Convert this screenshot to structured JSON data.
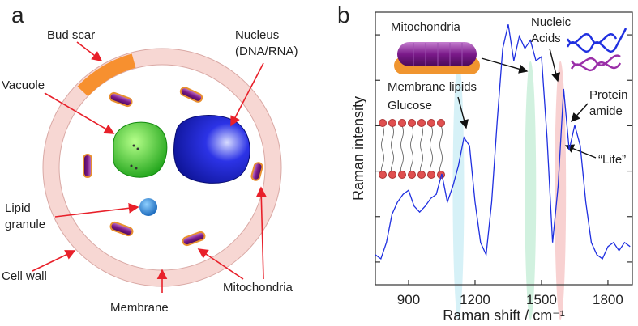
{
  "diagram": {
    "panel_label": "a",
    "labels": [
      {
        "lines": [
          "Bud scar"
        ]
      },
      {
        "lines": [
          "Nucleus",
          "(DNA/RNA)"
        ]
      },
      {
        "lines": [
          "Vacuole"
        ]
      },
      {
        "lines": [
          "Lipid",
          "granule"
        ]
      },
      {
        "lines": [
          "Cell wall"
        ]
      },
      {
        "lines": [
          "Membrane"
        ]
      },
      {
        "lines": [
          "Mitochondria"
        ]
      }
    ]
  },
  "chart_data": {
    "type": "line",
    "panel_label": "b",
    "x_label": "Raman shift / cm⁻¹",
    "y_label": "Raman intensity",
    "xlim": [
      750,
      1910
    ],
    "xticks": [
      900,
      1200,
      1500,
      1800
    ],
    "ylim": [
      0,
      6
    ],
    "yticks": [
      0.5,
      1.5,
      2.5,
      3.5,
      4.5,
      5.5
    ],
    "color": "#1f2fe0",
    "x": [
      750,
      775,
      800,
      825,
      850,
      875,
      900,
      925,
      950,
      975,
      1000,
      1025,
      1050,
      1075,
      1100,
      1125,
      1150,
      1175,
      1200,
      1225,
      1250,
      1275,
      1300,
      1325,
      1350,
      1375,
      1400,
      1425,
      1450,
      1475,
      1500,
      1525,
      1550,
      1575,
      1600,
      1625,
      1650,
      1675,
      1700,
      1725,
      1750,
      1775,
      1800,
      1825,
      1850,
      1875,
      1900
    ],
    "values": [
      0.66,
      0.57,
      0.93,
      1.55,
      1.82,
      1.99,
      2.08,
      1.73,
      1.6,
      1.73,
      1.9,
      1.99,
      2.44,
      1.82,
      2.17,
      2.62,
      3.24,
      3.06,
      1.82,
      0.93,
      0.66,
      1.82,
      3.6,
      5.2,
      5.73,
      4.93,
      5.47,
      5.2,
      5.38,
      4.93,
      5.02,
      3.24,
      0.93,
      2.17,
      4.31,
      2.97,
      3.51,
      3.06,
      1.82,
      0.93,
      0.66,
      0.57,
      0.84,
      0.93,
      0.75,
      0.93,
      0.84
    ],
    "highlights": [
      {
        "x": 1125,
        "color": "#cfeef6"
      },
      {
        "x": 1450,
        "color": "#c9efd9"
      },
      {
        "x": 1585,
        "color": "#f7c9c9"
      }
    ],
    "annotations": [
      {
        "lines": [
          "Mitochondria"
        ]
      },
      {
        "lines": [
          "Nucleic",
          "Acids"
        ]
      },
      {
        "lines": [
          "Membrane lipids"
        ]
      },
      {
        "lines": [
          "Glucose"
        ]
      },
      {
        "lines": [
          "Protein",
          "amide"
        ]
      },
      {
        "lines": [
          "“Life”"
        ]
      }
    ]
  }
}
